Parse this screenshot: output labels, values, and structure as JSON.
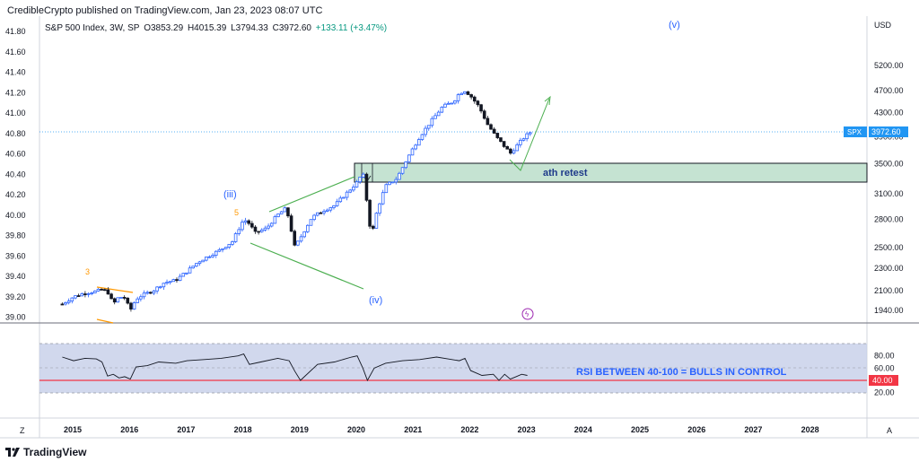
{
  "header": {
    "published": "CredibleCrypto published on TradingView.com, Jan 23, 2023 08:07 UTC"
  },
  "legend": {
    "symbol": "S&P 500 Index, 3W, SP",
    "open": "O3853.29",
    "high": "H4015.39",
    "low": "L3794.33",
    "close": "C3972.60",
    "change": "+133.11 (+3.47%)"
  },
  "colors": {
    "up_candle": "#2962ff",
    "down_candle": "#131722",
    "zone_fill": "#b7dcc7",
    "green_lines": "#4caf50",
    "orange_labels": "#ff9800",
    "rsi_band": "#c5cee8",
    "rsi_red_line": "#f23645",
    "price_tag": "#2196f3"
  },
  "chart_data": [
    {
      "type": "candlestick",
      "title": "S&P 500 Index, 3W, SP",
      "y_scale": "log",
      "left_axis_ticks": [
        "41.80",
        "41.60",
        "41.40",
        "41.20",
        "41.00",
        "40.80",
        "40.60",
        "40.40",
        "40.20",
        "40.00",
        "39.80",
        "39.60",
        "39.40",
        "39.20",
        "39.00"
      ],
      "right_axis_label": "USD",
      "right_axis_ticks": [
        "5200.00",
        "4700.00",
        "4300.00",
        "3900.00",
        "3500.00",
        "3100.00",
        "2800.00",
        "2500.00",
        "2300.00",
        "2100.00",
        "1940.00"
      ],
      "x_ticks": [
        "2015",
        "2016",
        "2017",
        "2018",
        "2019",
        "2020",
        "2021",
        "2022",
        "2023",
        "2024",
        "2025",
        "2026",
        "2027",
        "2028"
      ],
      "current_price": "3972.60",
      "symbol_tag": "SPX",
      "zone_label": "ath retest",
      "zone_range": [
        3250,
        3500
      ],
      "wave_labels": [
        "(iii)",
        "(iv)",
        "(v)",
        "3",
        "5"
      ],
      "close_series": {
        "x": [
          2014.8,
          2015.0,
          2015.2,
          2015.4,
          2015.5,
          2015.6,
          2015.7,
          2015.8,
          2015.9,
          2016.0,
          2016.1,
          2016.2,
          2016.4,
          2016.6,
          2016.8,
          2017.0,
          2017.2,
          2017.4,
          2017.6,
          2017.8,
          2018.0,
          2018.1,
          2018.2,
          2018.4,
          2018.6,
          2018.75,
          2018.9,
          2019.0,
          2019.2,
          2019.4,
          2019.6,
          2019.8,
          2020.0,
          2020.1,
          2020.18,
          2020.25,
          2020.35,
          2020.5,
          2020.7,
          2020.9,
          2021.1,
          2021.3,
          2021.5,
          2021.7,
          2021.8,
          2021.9,
          2022.0,
          2022.15,
          2022.3,
          2022.45,
          2022.55,
          2022.7,
          2022.8,
          2022.95,
          2023.05
        ],
        "y": [
          1990,
          2050,
          2080,
          2095,
          2110,
          2090,
          1990,
          2050,
          2040,
          1940,
          2030,
          2060,
          2100,
          2170,
          2190,
          2270,
          2360,
          2420,
          2480,
          2560,
          2800,
          2750,
          2650,
          2700,
          2850,
          2930,
          2500,
          2600,
          2820,
          2900,
          2960,
          3100,
          3250,
          3380,
          2950,
          2600,
          2900,
          3200,
          3300,
          3600,
          3900,
          4150,
          4400,
          4500,
          4650,
          4700,
          4600,
          4400,
          4100,
          3900,
          3800,
          3650,
          3750,
          3900,
          3972.6
        ]
      }
    },
    {
      "type": "line",
      "title": "RSI",
      "right_axis_ticks": [
        "80.00",
        "60.00",
        "40.00",
        "20.00"
      ],
      "band_range": [
        40,
        80
      ],
      "red_level": "40.00",
      "annotation": "RSI BETWEEN 40-100 = BULLS IN CONTROL",
      "x": [
        2014.8,
        2015.0,
        2015.2,
        2015.4,
        2015.5,
        2015.6,
        2015.7,
        2015.8,
        2015.9,
        2016.0,
        2016.1,
        2016.3,
        2016.5,
        2016.8,
        2017.0,
        2017.3,
        2017.6,
        2017.9,
        2018.0,
        2018.1,
        2018.3,
        2018.6,
        2018.8,
        2018.9,
        2019.0,
        2019.3,
        2019.6,
        2019.9,
        2020.0,
        2020.1,
        2020.18,
        2020.3,
        2020.5,
        2020.8,
        2021.1,
        2021.4,
        2021.6,
        2021.8,
        2021.9,
        2022.0,
        2022.2,
        2022.4,
        2022.5,
        2022.6,
        2022.7,
        2022.8,
        2022.9,
        2023.0
      ],
      "y": [
        78,
        72,
        76,
        75,
        70,
        47,
        50,
        44,
        46,
        42,
        62,
        64,
        70,
        68,
        72,
        74,
        76,
        80,
        83,
        66,
        70,
        76,
        72,
        55,
        40,
        66,
        70,
        78,
        80,
        60,
        40,
        60,
        68,
        72,
        74,
        78,
        75,
        72,
        76,
        56,
        48,
        50,
        40,
        50,
        42,
        46,
        50,
        48
      ]
    }
  ],
  "bottom_bar": {
    "left_btn": "Z",
    "right_btn": "A"
  },
  "footer": {
    "brand": "TradingView"
  }
}
